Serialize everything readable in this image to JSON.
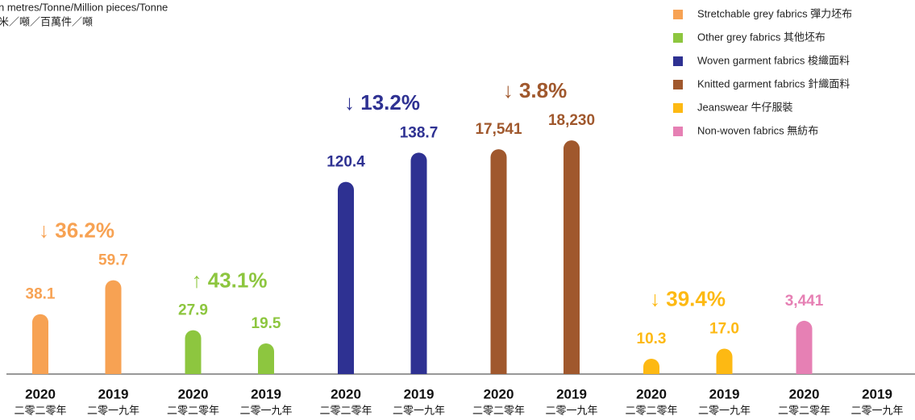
{
  "chart_data": {
    "type": "bar",
    "title": "n metres/Tonne/Million pieces/Tonne",
    "subtitle": "米／噸／百萬件／噸",
    "categories": [
      "2020",
      "2019"
    ],
    "categories_zh": [
      "二零二零年",
      "二零一九年"
    ],
    "series": [
      {
        "name": "Stretchable grey fabrics 彈力坯布",
        "color": "#f7a253",
        "values": [
          38.1,
          59.7
        ],
        "change_label": "↓ 36.2%"
      },
      {
        "name": "Other grey fabrics  其他坯布",
        "color": "#8dc63f",
        "values": [
          27.9,
          19.5
        ],
        "change_label": "↑ 43.1%"
      },
      {
        "name": "Woven garment fabrics 梭織面料",
        "color": "#2e3192",
        "values": [
          120.4,
          138.7
        ],
        "change_label": "↓ 13.2%"
      },
      {
        "name": "Knitted garment fabrics 針織面料",
        "color": "#a0582d",
        "values": [
          17541,
          18230
        ],
        "value_labels": [
          "17,541",
          "18,230"
        ],
        "change_label": "↓ 3.8%"
      },
      {
        "name": "Jeanswear 牛仔服裝",
        "color": "#fdb913",
        "values": [
          10.3,
          17.0
        ],
        "value_labels": [
          "10.3",
          "17.0"
        ],
        "change_label": "↓ 39.4%"
      },
      {
        "name": "Non-woven fabrics 無紡布",
        "color": "#e680b4",
        "values": [
          3441,
          null
        ],
        "value_labels": [
          "3,441",
          null
        ]
      }
    ]
  }
}
